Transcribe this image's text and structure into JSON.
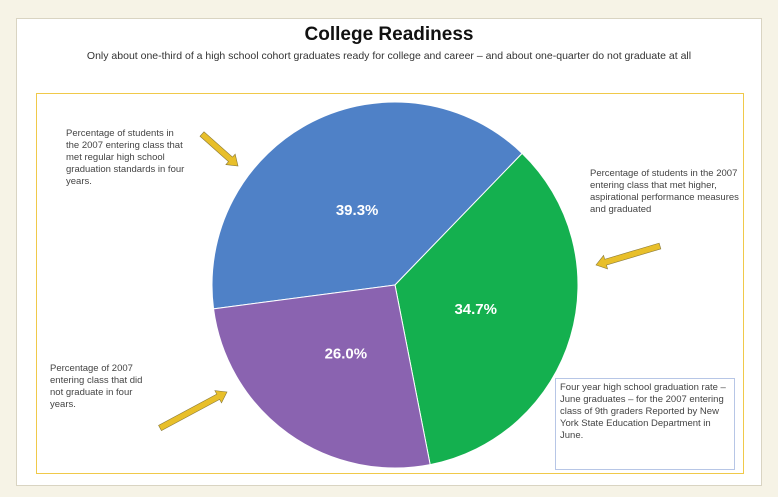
{
  "title": "College Readiness",
  "subtitle": "Only about one-third of a high school cohort graduates ready for college and career – and about one-quarter do not graduate at all",
  "colors": {
    "blue": "#4f81c7",
    "green": "#14b04f",
    "purple": "#8a63b0",
    "arrow": "#e8bf2a",
    "frame": "#f0c94a"
  },
  "annotations": {
    "regular": "Percentage of students in the 2007 entering class that met regular high school graduation standards in four years.",
    "higher": "Percentage of students in the 2007 entering class that met higher, aspirational performance measures and graduated",
    "not_graduate": "Percentage of 2007 entering class that did not graduate in four years.",
    "note": "Four year high school graduation rate – June graduates – for the 2007 entering class of 9th graders Reported by New York State Education Department in June."
  },
  "chart_data": {
    "type": "pie",
    "title": "College Readiness",
    "slices": [
      {
        "label": "39.3%",
        "value": 39.3,
        "color": "#4f81c7"
      },
      {
        "label": "34.7%",
        "value": 34.7,
        "color": "#14b04f"
      },
      {
        "label": "26.0%",
        "value": 26.0,
        "color": "#8a63b0"
      }
    ]
  }
}
